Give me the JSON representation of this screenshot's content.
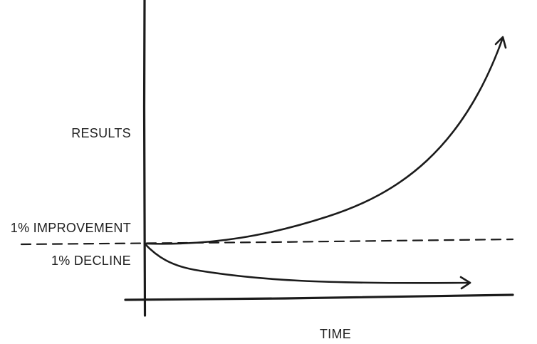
{
  "labels": {
    "results": "RESULTS",
    "improvement": "1% IMPROVEMENT",
    "decline": "1% DECLINE",
    "time": "TIME"
  },
  "colors": {
    "background": "#ffffff",
    "ink": "#1b1b1b",
    "text": "#222222"
  }
}
